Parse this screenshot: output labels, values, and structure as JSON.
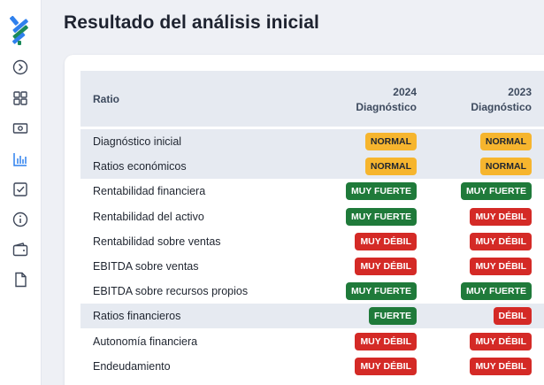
{
  "page": {
    "title": "Resultado del análisis inicial"
  },
  "sidebar": {
    "icons": [
      "logo-icon",
      "expand-icon",
      "dashboard-grid-icon",
      "cash-icon",
      "bar-chart-icon",
      "checklist-icon",
      "info-icon",
      "wallet-icon",
      "document-icon"
    ],
    "active_color": "#2f80ed"
  },
  "table": {
    "header": {
      "ratio": "Ratio",
      "col_2024_year": "2024",
      "col_2024_sub": "Diagnóstico",
      "col_2023_year": "2023",
      "col_2023_sub": "Diagnóstico"
    },
    "rows": [
      {
        "label": "Diagnóstico inicial",
        "section": true,
        "v2024": "NORMAL",
        "v2023": "NORMAL"
      },
      {
        "label": "Ratios económicos",
        "section": true,
        "v2024": "NORMAL",
        "v2023": "NORMAL"
      },
      {
        "label": "Rentabilidad financiera",
        "section": false,
        "v2024": "MUY FUERTE",
        "v2023": "MUY FUERTE"
      },
      {
        "label": "Rentabilidad del activo",
        "section": false,
        "v2024": "MUY FUERTE",
        "v2023": "MUY DÉBIL"
      },
      {
        "label": "Rentabilidad sobre ventas",
        "section": false,
        "v2024": "MUY DÉBIL",
        "v2023": "MUY DÉBIL"
      },
      {
        "label": "EBITDA sobre ventas",
        "section": false,
        "v2024": "MUY DÉBIL",
        "v2023": "MUY DÉBIL"
      },
      {
        "label": "EBITDA sobre recursos propios",
        "section": false,
        "v2024": "MUY FUERTE",
        "v2023": "MUY FUERTE"
      },
      {
        "label": "Ratios financieros",
        "section": true,
        "v2024": "FUERTE",
        "v2023": "DÉBIL"
      },
      {
        "label": "Autonomía financiera",
        "section": false,
        "v2024": "MUY DÉBIL",
        "v2023": "MUY DÉBIL"
      },
      {
        "label": "Endeudamiento",
        "section": false,
        "v2024": "MUY DÉBIL",
        "v2023": "MUY DÉBIL"
      }
    ]
  },
  "badge_colors": {
    "NORMAL": {
      "bg": "#f6b52e",
      "fg": "#1f2530"
    },
    "MUY FUERTE": {
      "bg": "#1f7a3a",
      "fg": "#ffffff"
    },
    "FUERTE": {
      "bg": "#1f7a3a",
      "fg": "#ffffff"
    },
    "MUY DÉBIL": {
      "bg": "#d42a26",
      "fg": "#ffffff"
    },
    "DÉBIL": {
      "bg": "#d42a26",
      "fg": "#ffffff"
    }
  }
}
